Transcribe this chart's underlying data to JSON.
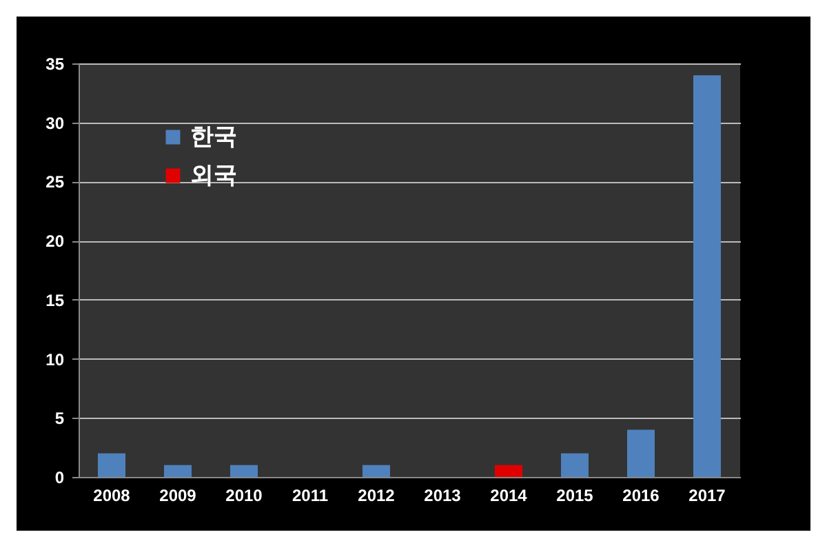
{
  "chart_data": {
    "type": "bar",
    "categories": [
      "2008",
      "2009",
      "2010",
      "2011",
      "2012",
      "2013",
      "2014",
      "2015",
      "2016",
      "2017"
    ],
    "series": [
      {
        "name": "한국",
        "color": "#4f81bd",
        "values": [
          2,
          1,
          1,
          0,
          1,
          0,
          null,
          2,
          4,
          34
        ]
      },
      {
        "name": "외국",
        "color": "#e00000",
        "values": [
          null,
          null,
          null,
          null,
          null,
          null,
          1,
          null,
          null,
          null
        ]
      }
    ],
    "ylim": [
      0,
      35
    ],
    "yticks": [
      0,
      5,
      10,
      15,
      20,
      25,
      30,
      35
    ],
    "grid": "y",
    "legend": "top left"
  }
}
